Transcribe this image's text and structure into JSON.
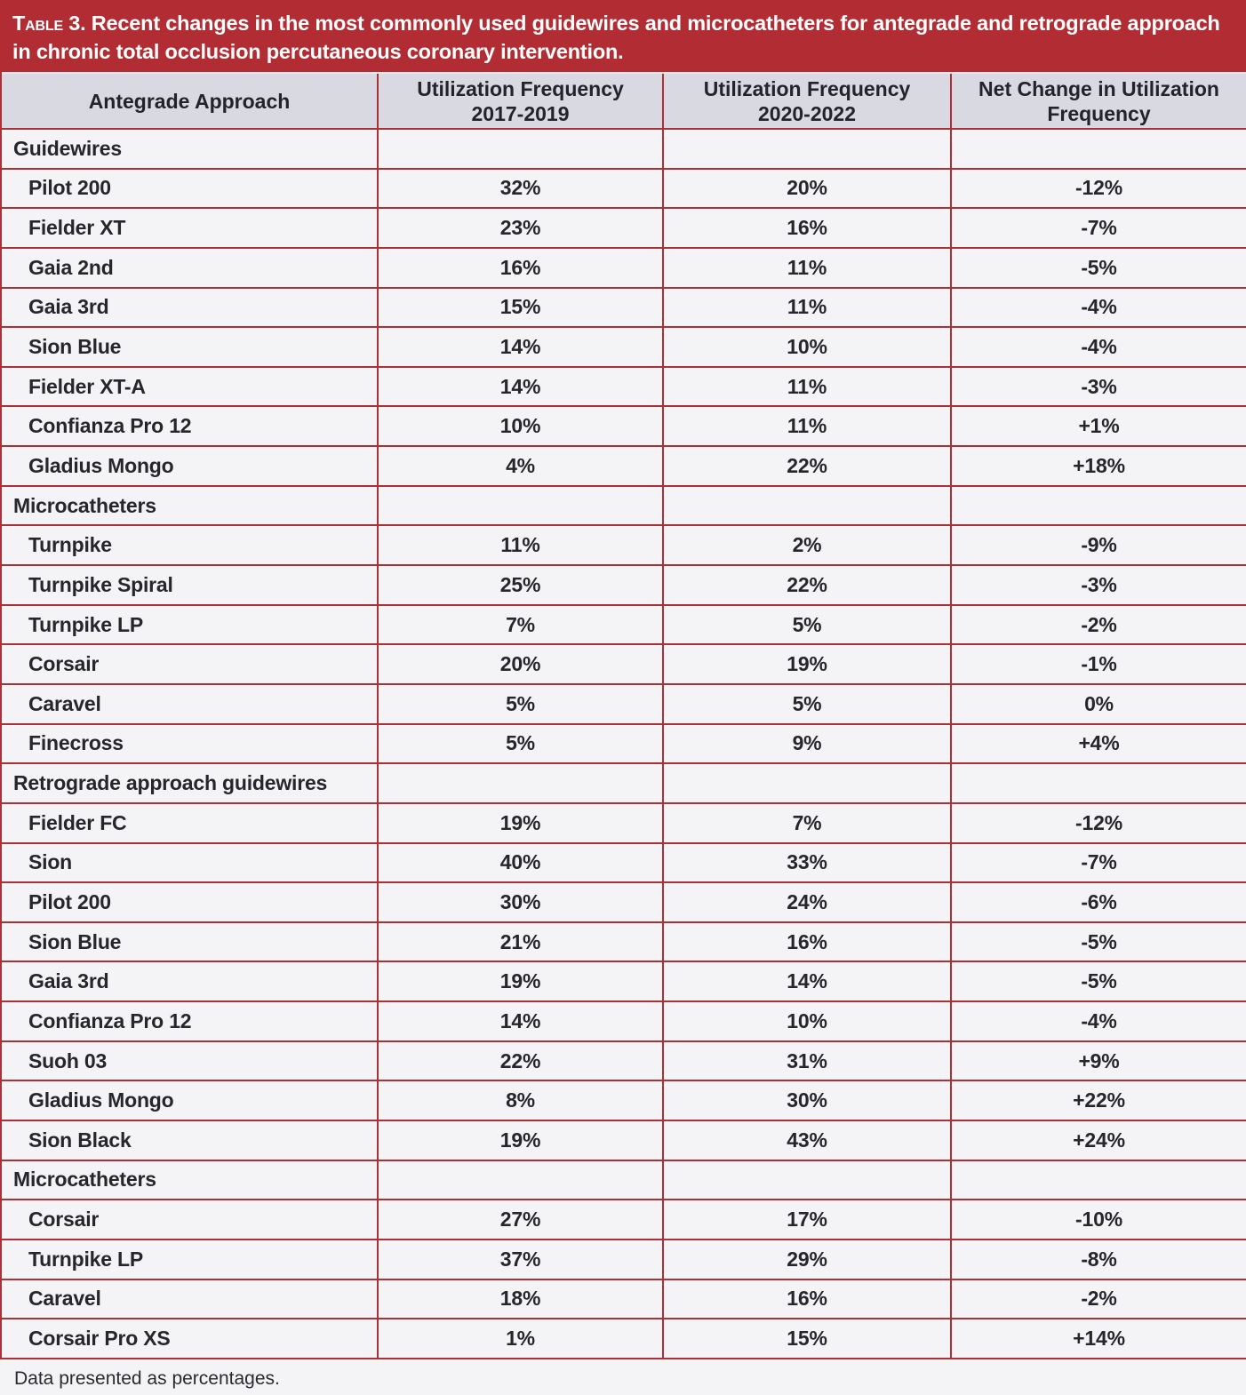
{
  "table": {
    "title_label": "Table 3.",
    "title_rest": "Recent changes in the most commonly used guidewires and microcatheters for antegrade and retrograde approach in chronic total occlusion percutaneous coronary intervention.",
    "columns": [
      {
        "line1": "Antegrade Approach",
        "line2": ""
      },
      {
        "line1": "Utilization Frequency",
        "line2": "2017-2019"
      },
      {
        "line1": "Utilization Frequency",
        "line2": "2020-2022"
      },
      {
        "line1": "Net Change in Utilization",
        "line2": "Frequency"
      }
    ],
    "rows": [
      {
        "type": "section",
        "label": "Guidewires",
        "freq_2017_2019": "",
        "freq_2020_2022": "",
        "net_change": ""
      },
      {
        "type": "item",
        "label": "Pilot 200",
        "freq_2017_2019": "32%",
        "freq_2020_2022": "20%",
        "net_change": "-12%"
      },
      {
        "type": "item",
        "label": "Fielder XT",
        "freq_2017_2019": "23%",
        "freq_2020_2022": "16%",
        "net_change": "-7%"
      },
      {
        "type": "item",
        "label": "Gaia 2nd",
        "freq_2017_2019": "16%",
        "freq_2020_2022": "11%",
        "net_change": "-5%"
      },
      {
        "type": "item",
        "label": "Gaia 3rd",
        "freq_2017_2019": "15%",
        "freq_2020_2022": "11%",
        "net_change": "-4%"
      },
      {
        "type": "item",
        "label": "Sion Blue",
        "freq_2017_2019": "14%",
        "freq_2020_2022": "10%",
        "net_change": "-4%"
      },
      {
        "type": "item",
        "label": "Fielder XT-A",
        "freq_2017_2019": "14%",
        "freq_2020_2022": "11%",
        "net_change": "-3%"
      },
      {
        "type": "item",
        "label": "Confianza Pro 12",
        "freq_2017_2019": "10%",
        "freq_2020_2022": "11%",
        "net_change": "+1%"
      },
      {
        "type": "item",
        "label": "Gladius Mongo",
        "freq_2017_2019": "4%",
        "freq_2020_2022": "22%",
        "net_change": "+18%"
      },
      {
        "type": "section",
        "label": "Microcatheters",
        "freq_2017_2019": "",
        "freq_2020_2022": "",
        "net_change": ""
      },
      {
        "type": "item",
        "label": "Turnpike",
        "freq_2017_2019": "11%",
        "freq_2020_2022": "2%",
        "net_change": "-9%"
      },
      {
        "type": "item",
        "label": "Turnpike Spiral",
        "freq_2017_2019": "25%",
        "freq_2020_2022": "22%",
        "net_change": "-3%"
      },
      {
        "type": "item",
        "label": "Turnpike LP",
        "freq_2017_2019": "7%",
        "freq_2020_2022": "5%",
        "net_change": "-2%"
      },
      {
        "type": "item",
        "label": "Corsair",
        "freq_2017_2019": "20%",
        "freq_2020_2022": "19%",
        "net_change": "-1%"
      },
      {
        "type": "item",
        "label": "Caravel",
        "freq_2017_2019": "5%",
        "freq_2020_2022": "5%",
        "net_change": "0%"
      },
      {
        "type": "item",
        "label": "Finecross",
        "freq_2017_2019": "5%",
        "freq_2020_2022": "9%",
        "net_change": "+4%"
      },
      {
        "type": "section",
        "label": "Retrograde approach guidewires",
        "freq_2017_2019": "",
        "freq_2020_2022": "",
        "net_change": ""
      },
      {
        "type": "item",
        "label": "Fielder FC",
        "freq_2017_2019": "19%",
        "freq_2020_2022": "7%",
        "net_change": "-12%"
      },
      {
        "type": "item",
        "label": "Sion",
        "freq_2017_2019": "40%",
        "freq_2020_2022": "33%",
        "net_change": "-7%"
      },
      {
        "type": "item",
        "label": "Pilot 200",
        "freq_2017_2019": "30%",
        "freq_2020_2022": "24%",
        "net_change": "-6%"
      },
      {
        "type": "item",
        "label": "Sion Blue",
        "freq_2017_2019": "21%",
        "freq_2020_2022": "16%",
        "net_change": "-5%"
      },
      {
        "type": "item",
        "label": "Gaia 3rd",
        "freq_2017_2019": "19%",
        "freq_2020_2022": "14%",
        "net_change": "-5%"
      },
      {
        "type": "item",
        "label": "Confianza Pro 12",
        "freq_2017_2019": "14%",
        "freq_2020_2022": "10%",
        "net_change": "-4%"
      },
      {
        "type": "item",
        "label": "Suoh 03",
        "freq_2017_2019": "22%",
        "freq_2020_2022": "31%",
        "net_change": "+9%"
      },
      {
        "type": "item",
        "label": "Gladius Mongo",
        "freq_2017_2019": "8%",
        "freq_2020_2022": "30%",
        "net_change": "+22%"
      },
      {
        "type": "item",
        "label": "Sion Black",
        "freq_2017_2019": "19%",
        "freq_2020_2022": "43%",
        "net_change": "+24%"
      },
      {
        "type": "section",
        "label": "Microcatheters",
        "freq_2017_2019": "",
        "freq_2020_2022": "",
        "net_change": ""
      },
      {
        "type": "item",
        "label": "Corsair",
        "freq_2017_2019": "27%",
        "freq_2020_2022": "17%",
        "net_change": "-10%"
      },
      {
        "type": "item",
        "label": "Turnpike LP",
        "freq_2017_2019": "37%",
        "freq_2020_2022": "29%",
        "net_change": "-8%"
      },
      {
        "type": "item",
        "label": "Caravel",
        "freq_2017_2019": "18%",
        "freq_2020_2022": "16%",
        "net_change": "-2%"
      },
      {
        "type": "item",
        "label": "Corsair Pro XS",
        "freq_2017_2019": "1%",
        "freq_2020_2022": "15%",
        "net_change": "+14%"
      }
    ],
    "footnote": "Data presented as percentages."
  },
  "colors": {
    "title_band_bg": "#b12d33",
    "title_text": "#ffffff",
    "border_red": "#a93137",
    "header_bg": "#d9d9e1",
    "row_bg": "#f4f3f5",
    "body_text": "#26262c"
  }
}
